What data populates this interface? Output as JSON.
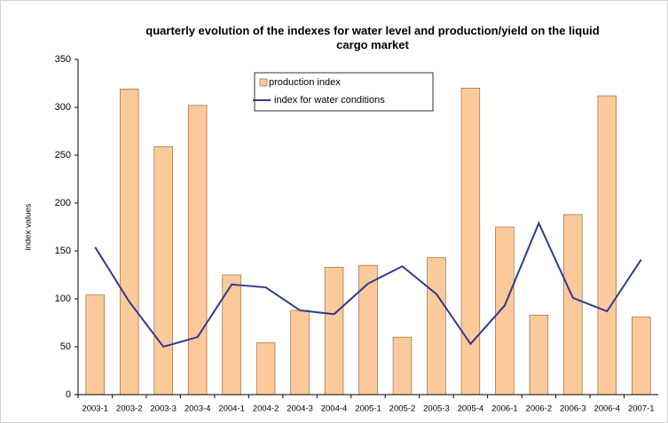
{
  "chart_data": {
    "type": "bar",
    "title": "quarterly evolution of the indexes for water level and production/yield on the liquid cargo market",
    "y_label": "index values",
    "categories": [
      "2003-1",
      "2003-2",
      "2003-3",
      "2003-4",
      "2004-1",
      "2004-2",
      "2004-3",
      "2004-4",
      "2005-1",
      "2005-2",
      "2005-3",
      "2005-4",
      "2006-1",
      "2006-2",
      "2006-3",
      "2006-4",
      "2007-1"
    ],
    "series": [
      {
        "name": "production index",
        "type": "bar",
        "color": "#fcc99a",
        "values": [
          104,
          319,
          259,
          302,
          125,
          54,
          88,
          133,
          135,
          60,
          143,
          320,
          175,
          83,
          188,
          312,
          81
        ]
      },
      {
        "name": "index for water conditions",
        "type": "line",
        "color": "#2f3b8f",
        "values": [
          154,
          97,
          50,
          60,
          115,
          112,
          88,
          84,
          116,
          134,
          105,
          53,
          93,
          179,
          101,
          87,
          141
        ]
      }
    ],
    "ylim": [
      0,
      350
    ],
    "yticks": [
      0,
      50,
      100,
      150,
      200,
      250,
      300,
      350
    ],
    "grid": false,
    "legend": "top"
  }
}
